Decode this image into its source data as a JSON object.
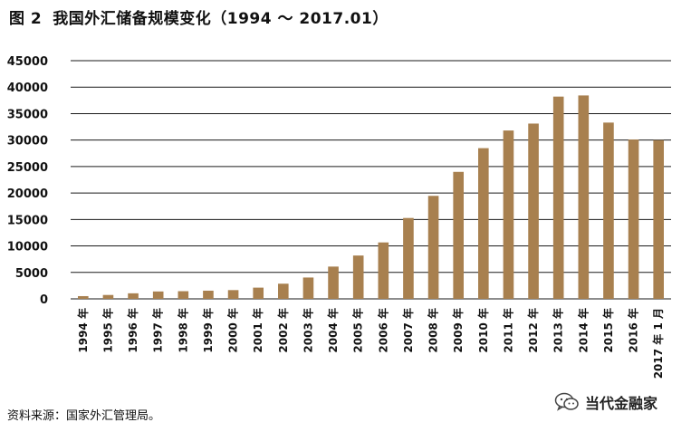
{
  "header": {
    "figure_label": "图 2",
    "title": "我国外汇储备规模变化（1994 ～ 2017.01）"
  },
  "source_text": "资料来源：国家外汇管理局。",
  "watermark": {
    "icon": "wechat-icon",
    "text": "当代金融家"
  },
  "colors": {
    "bar": "#A8804F",
    "grid": "#1a1a1a",
    "text": "#111111"
  },
  "chart_data": {
    "type": "bar",
    "title": "我国外汇储备规模变化（1994 ～ 2017.01）",
    "xlabel": "",
    "ylabel": "",
    "ylim": [
      0,
      45000
    ],
    "yticks": [
      0,
      5000,
      10000,
      15000,
      20000,
      25000,
      30000,
      35000,
      40000,
      45000
    ],
    "grid": "horizontal",
    "categories": [
      "1994 年",
      "1995 年",
      "1996 年",
      "1997 年",
      "1998 年",
      "1999 年",
      "2000 年",
      "2001 年",
      "2002 年",
      "2003 年",
      "2004 年",
      "2005 年",
      "2006 年",
      "2007 年",
      "2008 年",
      "2009 年",
      "2010 年",
      "2011 年",
      "2012 年",
      "2013 年",
      "2014 年",
      "2015 年",
      "2016 年",
      "2017 年 1 月"
    ],
    "values": [
      516,
      736,
      1050,
      1399,
      1450,
      1547,
      1656,
      2122,
      2864,
      4033,
      6099,
      8189,
      10663,
      15282,
      19460,
      23992,
      28473,
      31811,
      33116,
      38213,
      38430,
      33304,
      30105,
      29982
    ]
  }
}
